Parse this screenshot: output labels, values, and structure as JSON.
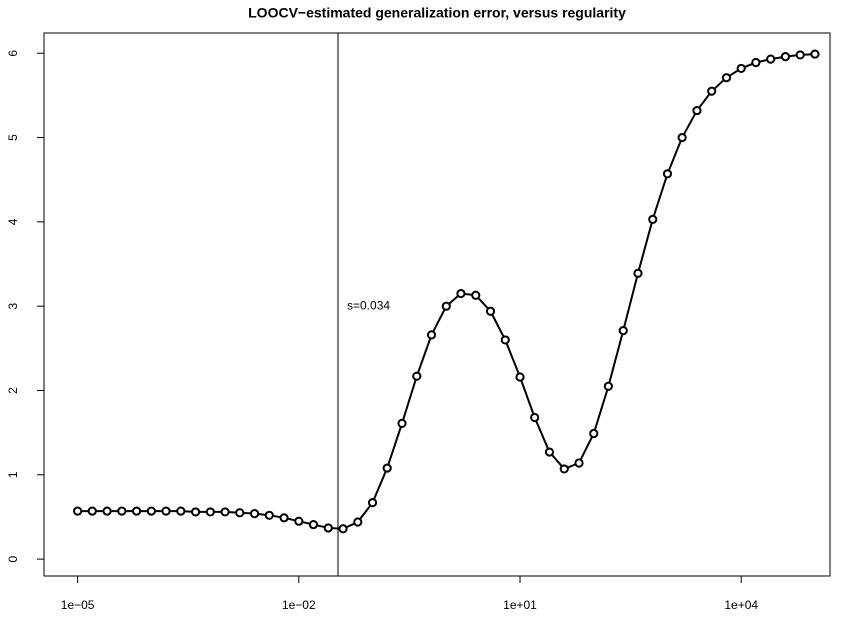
{
  "chart_data": {
    "type": "line",
    "title": "LOOCV−estimated generalization error, versus regularity",
    "x": [
      1e-05,
      1.58e-05,
      2.51e-05,
      3.98e-05,
      6.31e-05,
      0.0001,
      0.000158,
      0.000251,
      0.000398,
      0.000631,
      0.001,
      0.00158,
      0.00251,
      0.00398,
      0.00631,
      0.01,
      0.0158,
      0.0251,
      0.0398,
      0.0631,
      0.1,
      0.158,
      0.251,
      0.398,
      0.631,
      1,
      1.58,
      2.51,
      3.98,
      6.31,
      10,
      15.8,
      25.1,
      39.8,
      63.1,
      100,
      158,
      251,
      398,
      631,
      1000,
      1580,
      2510,
      3980,
      6310,
      10000,
      15800,
      25100,
      39800,
      63100,
      100000
    ],
    "series": [
      {
        "color": "#000000",
        "values": [
          0.57,
          0.57,
          0.57,
          0.57,
          0.57,
          0.57,
          0.57,
          0.57,
          0.56,
          0.56,
          0.56,
          0.55,
          0.54,
          0.52,
          0.49,
          0.45,
          0.41,
          0.37,
          0.36,
          0.44,
          0.67,
          1.08,
          1.61,
          2.17,
          2.66,
          3.0,
          3.15,
          3.13,
          2.94,
          2.6,
          2.16,
          1.68,
          1.27,
          1.07,
          1.14,
          1.49,
          2.05,
          2.71,
          3.39,
          4.03,
          4.57,
          5.0,
          5.32,
          5.55,
          5.71,
          5.82,
          5.89,
          5.93,
          5.96,
          5.98,
          5.99
        ]
      }
    ],
    "xscale": "log",
    "xlim": [
      3.5e-06,
      160000
    ],
    "xticks": [
      {
        "value": 1e-05,
        "label": "1e−05"
      },
      {
        "value": 0.01,
        "label": "1e−02"
      },
      {
        "value": 10,
        "label": "1e+01"
      },
      {
        "value": 10000,
        "label": "1e+04"
      }
    ],
    "ylim": [
      -0.2,
      6.24
    ],
    "yticks": [
      0,
      1,
      2,
      3,
      4,
      5,
      6
    ],
    "vline": 0.034,
    "annotation": "s=0.034"
  }
}
